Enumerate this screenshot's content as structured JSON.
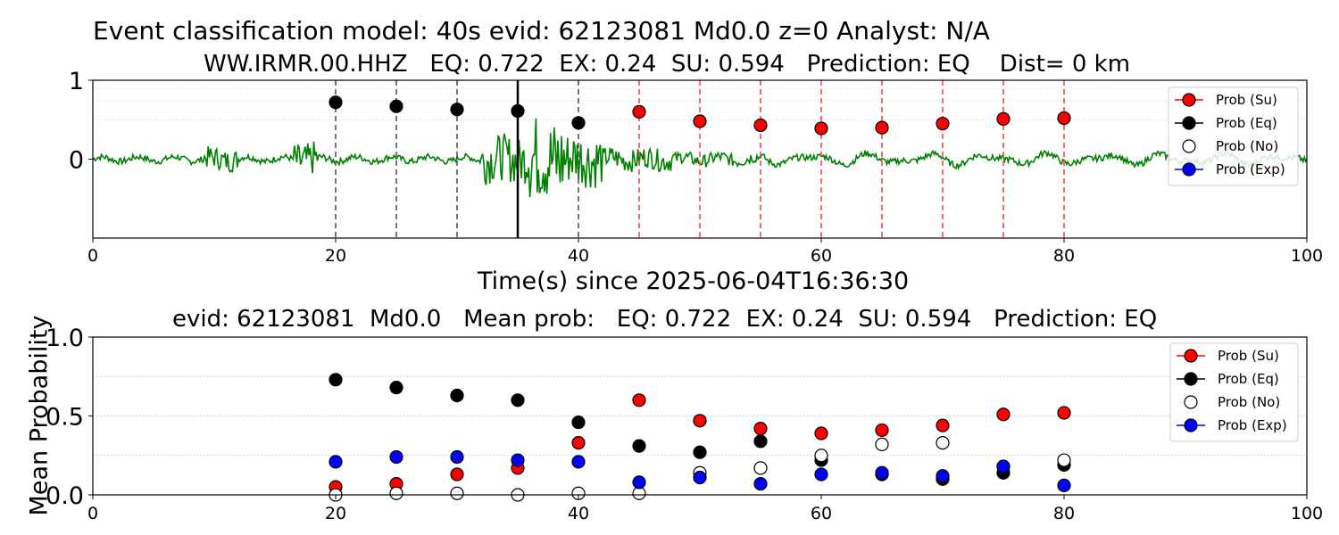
{
  "chart_data": [
    {
      "type": "line",
      "title": "Event classification model: 40s evid: 62123081 Md0.0 z=0 Analyst: N/A",
      "subtitle": "WW.IRMR.00.HHZ   EQ: 0.722  EX: 0.24  SU: 0.594   Prediction: EQ    Dist= 0 km",
      "xlabel": "Time(s) since 2025-06-04T16:36:30",
      "ylabel": "",
      "xlim": [
        0,
        100
      ],
      "ylim": [
        -1,
        1
      ],
      "x_ticks": [
        "0",
        "20",
        "40",
        "60",
        "80",
        "100"
      ],
      "y_ticks": [
        "0",
        "1"
      ],
      "grid": false,
      "legend_position": "top-right",
      "waveform_color": "#008000",
      "eq_window_lines": [
        20,
        25,
        30,
        35,
        40
      ],
      "su_window_lines": [
        45,
        50,
        55,
        60,
        65,
        70,
        75,
        80
      ],
      "bold_marker_line": 35,
      "series": [
        {
          "name": "Prob (Eq)",
          "color": "#000000",
          "x": [
            20,
            25,
            30,
            35,
            40
          ],
          "values": [
            0.72,
            0.67,
            0.63,
            0.61,
            0.46
          ]
        },
        {
          "name": "Prob (Su)",
          "color": "#ff0000",
          "x": [
            45,
            50,
            55,
            60,
            65,
            70,
            75,
            80
          ],
          "values": [
            0.6,
            0.48,
            0.43,
            0.39,
            0.4,
            0.45,
            0.51,
            0.52
          ]
        }
      ],
      "legend": [
        {
          "label": "Prob (Su)",
          "color": "#ff0000",
          "line": "#ff0000"
        },
        {
          "label": "Prob (Eq)",
          "color": "#000000",
          "line": "#000000"
        },
        {
          "label": "Prob (No)",
          "color": "#ffffff",
          "line": "none"
        },
        {
          "label": "Prob (Exp)",
          "color": "#0000ff",
          "line": "#0000ff"
        }
      ]
    },
    {
      "type": "scatter",
      "title": "evid: 62123081  Md0.0   Mean prob:   EQ: 0.722  EX: 0.24  SU: 0.594   Prediction: EQ",
      "xlabel": "",
      "ylabel": "Mean Probability",
      "xlim": [
        0,
        100
      ],
      "ylim": [
        0,
        1
      ],
      "x_ticks": [
        "0",
        "20",
        "40",
        "60",
        "80",
        "100"
      ],
      "y_ticks": [
        "0.0",
        "0.5",
        "1.0"
      ],
      "grid": "horizontal dotted",
      "legend_position": "top-right",
      "x": [
        20,
        25,
        30,
        35,
        40,
        45,
        50,
        55,
        60,
        65,
        70,
        75,
        80
      ],
      "series": [
        {
          "name": "Prob (Su)",
          "color": "#ff0000",
          "values": [
            0.05,
            0.07,
            0.13,
            0.17,
            0.33,
            0.6,
            0.47,
            0.42,
            0.39,
            0.41,
            0.44,
            0.51,
            0.52
          ]
        },
        {
          "name": "Prob (Eq)",
          "color": "#000000",
          "values": [
            0.73,
            0.68,
            0.63,
            0.6,
            0.46,
            0.31,
            0.27,
            0.34,
            0.22,
            0.13,
            0.1,
            0.14,
            0.19
          ]
        },
        {
          "name": "Prob (No)",
          "color": "#ffffff",
          "values": [
            0.0,
            0.01,
            0.01,
            0.0,
            0.01,
            0.01,
            0.14,
            0.17,
            0.25,
            0.32,
            0.33,
            0.18,
            0.22
          ]
        },
        {
          "name": "Prob (Exp)",
          "color": "#0000ff",
          "values": [
            0.21,
            0.24,
            0.24,
            0.22,
            0.21,
            0.08,
            0.11,
            0.07,
            0.13,
            0.14,
            0.12,
            0.18,
            0.06
          ]
        }
      ],
      "legend": [
        {
          "label": "Prob (Su)",
          "color": "#ff0000",
          "line": "#ff0000"
        },
        {
          "label": "Prob (Eq)",
          "color": "#000000",
          "line": "#000000"
        },
        {
          "label": "Prob (No)",
          "color": "#ffffff",
          "line": "none"
        },
        {
          "label": "Prob (Exp)",
          "color": "#0000ff",
          "line": "#0000ff"
        }
      ]
    }
  ]
}
